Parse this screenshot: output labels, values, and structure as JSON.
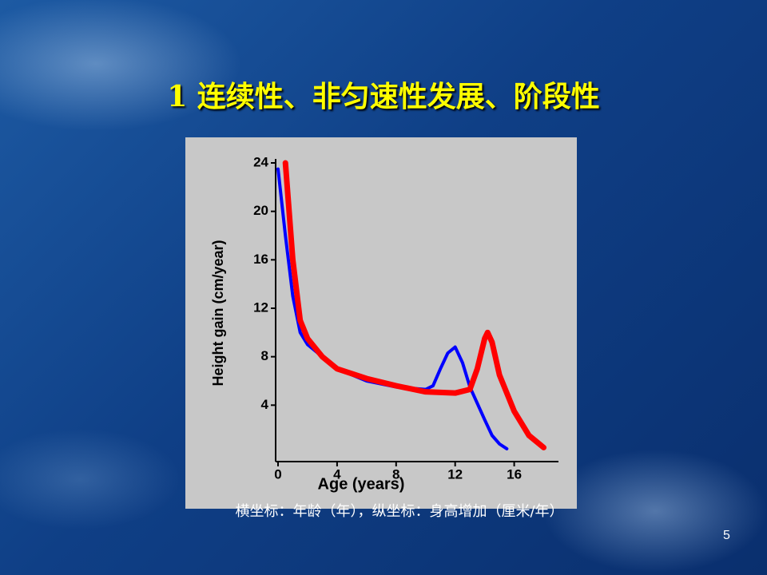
{
  "title": "1 连续性、非匀速性发展、阶段性",
  "caption": "横坐标：年龄（年），纵坐标：身高增加（厘米/年）",
  "page_number": "5",
  "chart_data": {
    "type": "line",
    "x_label": "Age (years)",
    "y_label": "Height gain (cm/year)",
    "xlim": [
      0,
      19
    ],
    "ylim": [
      0,
      24
    ],
    "xticks": [
      0,
      4,
      8,
      12,
      16
    ],
    "yticks": [
      4,
      8,
      12,
      16,
      20,
      24
    ],
    "series": [
      {
        "color": "#0000ff",
        "x": [
          0,
          0.5,
          1,
          1.5,
          2,
          3,
          4,
          6,
          8,
          10,
          10.5,
          11,
          11.5,
          12,
          12.5,
          13,
          14,
          14.5,
          15,
          15.5
        ],
        "values": [
          23.5,
          18,
          13,
          10,
          9,
          8,
          7,
          6,
          5.5,
          5.3,
          5.6,
          7,
          8.3,
          8.8,
          7.5,
          5.5,
          2.8,
          1.5,
          0.8,
          0.4
        ]
      },
      {
        "color": "#ff0000",
        "x": [
          0.5,
          1,
          1.5,
          2,
          3,
          4,
          6,
          8,
          10,
          12,
          13,
          13.5,
          14,
          14.2,
          14.5,
          15,
          16,
          17,
          18
        ],
        "values": [
          24,
          16,
          11,
          9.5,
          8,
          7,
          6.2,
          5.6,
          5.1,
          5,
          5.3,
          7,
          9.5,
          10,
          9.2,
          6.5,
          3.5,
          1.5,
          0.5
        ]
      }
    ]
  }
}
